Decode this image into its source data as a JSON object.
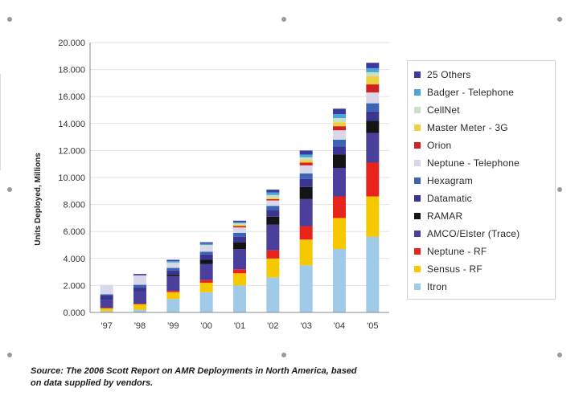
{
  "chart_data": {
    "type": "bar",
    "stacked": true,
    "categories": [
      "'97",
      "'98",
      "'99",
      "'00",
      "'01",
      "'02",
      "'03",
      "'04",
      "'05"
    ],
    "ylabel": "Units Deployed, Millions",
    "ylim": [
      0,
      20
    ],
    "yticks": [
      "0.000",
      "2.000",
      "4.000",
      "6.000",
      "8.000",
      "10.000",
      "12.000",
      "14.000",
      "16.000",
      "18.000",
      "20.000"
    ],
    "grid": true,
    "legend_position": "right",
    "series": [
      {
        "name": "Itron",
        "color": "#9fcbe8",
        "values": [
          0.1,
          0.2,
          1.0,
          1.5,
          2.0,
          2.6,
          3.5,
          4.7,
          5.6
        ]
      },
      {
        "name": "Sensus - RF",
        "color": "#f5c800",
        "values": [
          0.2,
          0.4,
          0.5,
          0.7,
          0.9,
          1.4,
          1.9,
          2.3,
          3.0
        ]
      },
      {
        "name": "Neptune - RF",
        "color": "#e8231b",
        "values": [
          0.05,
          0.05,
          0.1,
          0.2,
          0.3,
          0.6,
          1.0,
          1.6,
          2.5
        ]
      },
      {
        "name": "AMCO/Elster (Trace)",
        "color": "#4b3f9c",
        "values": [
          0.6,
          0.9,
          1.1,
          1.2,
          1.5,
          1.9,
          2.0,
          2.1,
          2.2
        ]
      },
      {
        "name": "RAMAR",
        "color": "#141414",
        "values": [
          0.0,
          0.0,
          0.1,
          0.3,
          0.5,
          0.6,
          0.9,
          1.0,
          0.9
        ]
      },
      {
        "name": "Datamatic",
        "color": "#3a3590",
        "values": [
          0.3,
          0.3,
          0.3,
          0.4,
          0.4,
          0.5,
          0.6,
          0.6,
          0.7
        ]
      },
      {
        "name": "Hexagram",
        "color": "#3d64b4",
        "values": [
          0.1,
          0.2,
          0.2,
          0.2,
          0.3,
          0.3,
          0.4,
          0.5,
          0.6
        ]
      },
      {
        "name": "Neptune - Telephone",
        "color": "#d8d8ea",
        "values": [
          0.7,
          0.7,
          0.3,
          0.4,
          0.4,
          0.4,
          0.6,
          0.7,
          0.8
        ]
      },
      {
        "name": "Orion",
        "color": "#d42020",
        "values": [
          0.0,
          0.0,
          0.0,
          0.0,
          0.1,
          0.1,
          0.2,
          0.3,
          0.6
        ]
      },
      {
        "name": "Master Meter - 3G",
        "color": "#f0d040",
        "values": [
          0.0,
          0.0,
          0.0,
          0.0,
          0.1,
          0.1,
          0.2,
          0.3,
          0.6
        ]
      },
      {
        "name": "CellNet",
        "color": "#c8e0c8",
        "values": [
          0.0,
          0.0,
          0.1,
          0.1,
          0.1,
          0.2,
          0.2,
          0.3,
          0.3
        ]
      },
      {
        "name": "Badger - Telephone",
        "color": "#4aa6d6",
        "values": [
          0.0,
          0.0,
          0.1,
          0.1,
          0.1,
          0.2,
          0.2,
          0.3,
          0.3
        ]
      },
      {
        "name": "25 Others",
        "color": "#3a3aa0",
        "values": [
          0.0,
          0.1,
          0.1,
          0.1,
          0.1,
          0.2,
          0.3,
          0.4,
          0.4
        ]
      }
    ]
  },
  "source_note": "Source:  The 2006 Scott Report on AMR Deployments in North America, based on data supplied by vendors."
}
